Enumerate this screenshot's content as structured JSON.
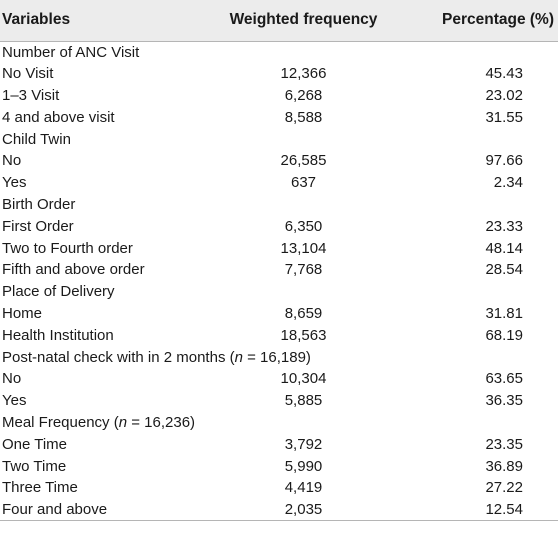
{
  "header": {
    "col1": "Variables",
    "col2": "Weighted frequency",
    "col3": "Percentage (%)"
  },
  "rows": [
    {
      "type": "section",
      "label": "Number of ANC Visit"
    },
    {
      "type": "data",
      "label": "No Visit",
      "freq": "12,366",
      "pct": "45.43"
    },
    {
      "type": "data",
      "label": "1–3 Visit",
      "freq": "6,268",
      "pct": "23.02"
    },
    {
      "type": "data",
      "label": "4 and above visit",
      "freq": "8,588",
      "pct": "31.55"
    },
    {
      "type": "section",
      "label": "Child Twin"
    },
    {
      "type": "data",
      "label": "No",
      "freq": "26,585",
      "pct": "97.66"
    },
    {
      "type": "data",
      "label": "Yes",
      "freq": "637",
      "pct": "2.34"
    },
    {
      "type": "section",
      "label": "Birth Order"
    },
    {
      "type": "data",
      "label": "First Order",
      "freq": "6,350",
      "pct": "23.33"
    },
    {
      "type": "data",
      "label": "Two to Fourth order",
      "freq": "13,104",
      "pct": "48.14"
    },
    {
      "type": "data",
      "label": "Fifth and above order",
      "freq": "7,768",
      "pct": "28.54"
    },
    {
      "type": "section",
      "label": "Place of Delivery"
    },
    {
      "type": "data",
      "label": "Home",
      "freq": "8,659",
      "pct": "31.81"
    },
    {
      "type": "data",
      "label": "Health Institution",
      "freq": "18,563",
      "pct": "68.19"
    },
    {
      "type": "section",
      "label_pre": "Post-natal check with in 2 months (",
      "label_var": "n",
      "label_post": " = 16,189)"
    },
    {
      "type": "data",
      "label": "No",
      "freq": "10,304",
      "pct": "63.65"
    },
    {
      "type": "data",
      "label": "Yes",
      "freq": "5,885",
      "pct": "36.35"
    },
    {
      "type": "section",
      "label_pre": "Meal Frequency (",
      "label_var": "n",
      "label_post": " = 16,236)"
    },
    {
      "type": "data",
      "label": "One Time",
      "freq": "3,792",
      "pct": "23.35"
    },
    {
      "type": "data",
      "label": "Two Time",
      "freq": "5,990",
      "pct": "36.89"
    },
    {
      "type": "data",
      "label": "Three Time",
      "freq": "4,419",
      "pct": "27.22"
    },
    {
      "type": "data",
      "label": "Four and above",
      "freq": "2,035",
      "pct": "12.54"
    }
  ]
}
